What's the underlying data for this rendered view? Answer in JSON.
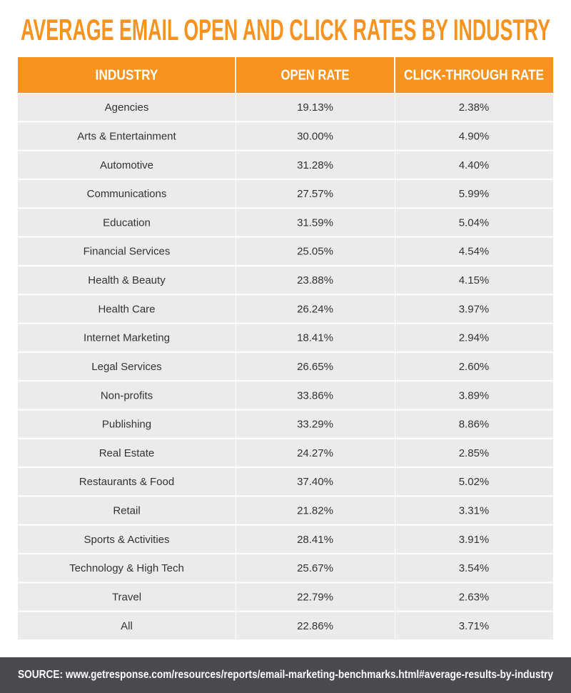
{
  "title": "AVERAGE EMAIL OPEN AND CLICK RATES BY INDUSTRY",
  "table": {
    "header": [
      "INDUSTRY",
      "OPEN RATE",
      "CLICK-THROUGH RATE"
    ],
    "rows": [
      [
        "Agencies",
        "19.13%",
        "2.38%"
      ],
      [
        "Arts & Entertainment",
        "30.00%",
        "4.90%"
      ],
      [
        "Automotive",
        "31.28%",
        "4.40%"
      ],
      [
        "Communications",
        "27.57%",
        "5.99%"
      ],
      [
        "Education",
        "31.59%",
        "5.04%"
      ],
      [
        "Financial Services",
        "25.05%",
        "4.54%"
      ],
      [
        "Health & Beauty",
        "23.88%",
        "4.15%"
      ],
      [
        "Health Care",
        "26.24%",
        "3.97%"
      ],
      [
        "Internet Marketing",
        "18.41%",
        "2.94%"
      ],
      [
        "Legal Services",
        "26.65%",
        "2.60%"
      ],
      [
        "Non-profits",
        "33.86%",
        "3.89%"
      ],
      [
        "Publishing",
        "33.29%",
        "8.86%"
      ],
      [
        "Real Estate",
        "24.27%",
        "2.85%"
      ],
      [
        "Restaurants & Food",
        "37.40%",
        "5.02%"
      ],
      [
        "Retail",
        "21.82%",
        "3.31%"
      ],
      [
        "Sports & Activities",
        "28.41%",
        "3.91%"
      ],
      [
        "Technology & High Tech",
        "25.67%",
        "3.54%"
      ],
      [
        "Travel",
        "22.79%",
        "2.63%"
      ],
      [
        "All",
        "22.86%",
        "3.71%"
      ]
    ]
  },
  "source": {
    "label": "SOURCE:",
    "url": "www.getresponse.com/resources/reports/email-marketing-benchmarks.html#average-results-by-industry"
  }
}
